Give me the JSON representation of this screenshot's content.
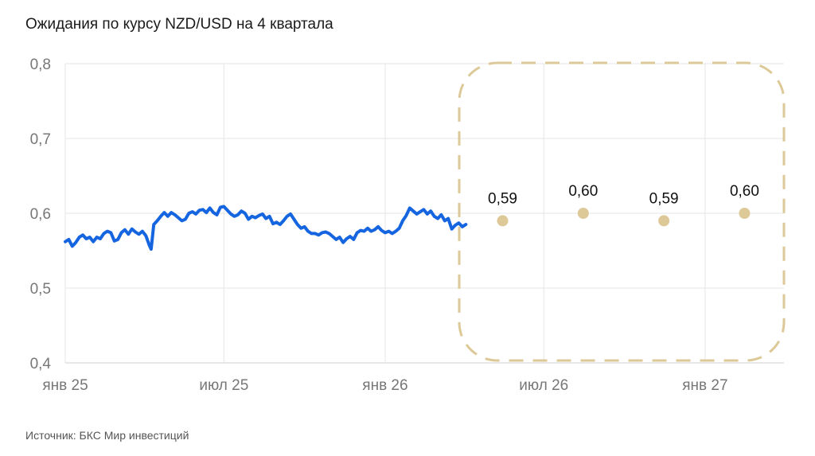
{
  "chart_data": {
    "type": "line",
    "title": "Ожидания по курсу NZD/USD на 4 квартала",
    "source": "Источник: БКС Мир инвестиций",
    "x_ticks": [
      "янв 25",
      "июл 25",
      "янв 26",
      "июл 26",
      "янв 27"
    ],
    "y_ticks": [
      "0,4",
      "0,5",
      "0,6",
      "0,7",
      "0,8"
    ],
    "ylim": [
      0.4,
      0.8
    ],
    "xlim": [
      "2025-01-01",
      "2027-04-01"
    ],
    "grid": true,
    "series": [
      {
        "kind": "line",
        "color": "#1565e0",
        "points": [
          [
            "2025-01-01",
            0.562
          ],
          [
            "2025-01-05",
            0.565
          ],
          [
            "2025-01-09",
            0.556
          ],
          [
            "2025-01-13",
            0.561
          ],
          [
            "2025-01-17",
            0.568
          ],
          [
            "2025-01-21",
            0.571
          ],
          [
            "2025-01-25",
            0.566
          ],
          [
            "2025-01-29",
            0.568
          ],
          [
            "2025-02-02",
            0.562
          ],
          [
            "2025-02-06",
            0.568
          ],
          [
            "2025-02-10",
            0.566
          ],
          [
            "2025-02-14",
            0.573
          ],
          [
            "2025-02-18",
            0.576
          ],
          [
            "2025-02-22",
            0.574
          ],
          [
            "2025-02-26",
            0.563
          ],
          [
            "2025-03-02",
            0.565
          ],
          [
            "2025-03-06",
            0.574
          ],
          [
            "2025-03-10",
            0.578
          ],
          [
            "2025-03-14",
            0.572
          ],
          [
            "2025-03-18",
            0.579
          ],
          [
            "2025-03-22",
            0.575
          ],
          [
            "2025-03-26",
            0.572
          ],
          [
            "2025-03-30",
            0.576
          ],
          [
            "2025-04-03",
            0.57
          ],
          [
            "2025-04-07",
            0.557
          ],
          [
            "2025-04-09",
            0.552
          ],
          [
            "2025-04-12",
            0.585
          ],
          [
            "2025-04-16",
            0.59
          ],
          [
            "2025-04-20",
            0.596
          ],
          [
            "2025-04-24",
            0.601
          ],
          [
            "2025-04-28",
            0.596
          ],
          [
            "2025-05-02",
            0.601
          ],
          [
            "2025-05-06",
            0.598
          ],
          [
            "2025-05-10",
            0.594
          ],
          [
            "2025-05-14",
            0.59
          ],
          [
            "2025-05-18",
            0.592
          ],
          [
            "2025-05-22",
            0.6
          ],
          [
            "2025-05-26",
            0.602
          ],
          [
            "2025-05-30",
            0.599
          ],
          [
            "2025-06-03",
            0.604
          ],
          [
            "2025-06-07",
            0.605
          ],
          [
            "2025-06-11",
            0.601
          ],
          [
            "2025-06-15",
            0.607
          ],
          [
            "2025-06-19",
            0.601
          ],
          [
            "2025-06-23",
            0.598
          ],
          [
            "2025-06-27",
            0.608
          ],
          [
            "2025-07-01",
            0.609
          ],
          [
            "2025-07-05",
            0.604
          ],
          [
            "2025-07-09",
            0.599
          ],
          [
            "2025-07-13",
            0.596
          ],
          [
            "2025-07-17",
            0.598
          ],
          [
            "2025-07-21",
            0.603
          ],
          [
            "2025-07-25",
            0.6
          ],
          [
            "2025-07-29",
            0.592
          ],
          [
            "2025-08-02",
            0.596
          ],
          [
            "2025-08-06",
            0.594
          ],
          [
            "2025-08-10",
            0.597
          ],
          [
            "2025-08-14",
            0.599
          ],
          [
            "2025-08-18",
            0.593
          ],
          [
            "2025-08-22",
            0.596
          ],
          [
            "2025-08-26",
            0.586
          ],
          [
            "2025-08-30",
            0.588
          ],
          [
            "2025-09-03",
            0.585
          ],
          [
            "2025-09-07",
            0.59
          ],
          [
            "2025-09-11",
            0.596
          ],
          [
            "2025-09-15",
            0.599
          ],
          [
            "2025-09-19",
            0.592
          ],
          [
            "2025-09-23",
            0.585
          ],
          [
            "2025-09-27",
            0.58
          ],
          [
            "2025-10-01",
            0.582
          ],
          [
            "2025-10-05",
            0.576
          ],
          [
            "2025-10-09",
            0.573
          ],
          [
            "2025-10-13",
            0.573
          ],
          [
            "2025-10-17",
            0.571
          ],
          [
            "2025-10-21",
            0.574
          ],
          [
            "2025-10-25",
            0.575
          ],
          [
            "2025-10-29",
            0.573
          ],
          [
            "2025-11-02",
            0.569
          ],
          [
            "2025-11-06",
            0.565
          ],
          [
            "2025-11-10",
            0.568
          ],
          [
            "2025-11-14",
            0.561
          ],
          [
            "2025-11-18",
            0.566
          ],
          [
            "2025-11-22",
            0.569
          ],
          [
            "2025-11-26",
            0.565
          ],
          [
            "2025-11-30",
            0.574
          ],
          [
            "2025-12-04",
            0.577
          ],
          [
            "2025-12-08",
            0.576
          ],
          [
            "2025-12-12",
            0.58
          ],
          [
            "2025-12-16",
            0.576
          ],
          [
            "2025-12-20",
            0.578
          ],
          [
            "2025-12-24",
            0.582
          ],
          [
            "2025-12-28",
            0.577
          ],
          [
            "2026-01-01",
            0.574
          ],
          [
            "2026-01-05",
            0.576
          ],
          [
            "2026-01-09",
            0.573
          ],
          [
            "2026-01-13",
            0.576
          ],
          [
            "2026-01-17",
            0.58
          ],
          [
            "2026-01-21",
            0.59
          ],
          [
            "2026-01-25",
            0.597
          ],
          [
            "2026-01-29",
            0.607
          ],
          [
            "2026-02-02",
            0.603
          ],
          [
            "2026-02-06",
            0.599
          ],
          [
            "2026-02-10",
            0.602
          ],
          [
            "2026-02-14",
            0.605
          ],
          [
            "2026-02-18",
            0.599
          ],
          [
            "2026-02-22",
            0.603
          ],
          [
            "2026-02-26",
            0.596
          ],
          [
            "2026-03-02",
            0.593
          ],
          [
            "2026-03-06",
            0.598
          ],
          [
            "2026-03-10",
            0.59
          ],
          [
            "2026-03-14",
            0.593
          ],
          [
            "2026-03-18",
            0.579
          ],
          [
            "2026-03-22",
            0.584
          ],
          [
            "2026-03-26",
            0.587
          ],
          [
            "2026-03-30",
            0.582
          ],
          [
            "2026-04-03",
            0.585
          ]
        ]
      },
      {
        "kind": "forecast",
        "color": "#ddc998",
        "points": [
          [
            "2026-05-15",
            0.59
          ],
          [
            "2026-08-15",
            0.6
          ],
          [
            "2026-11-15",
            0.59
          ],
          [
            "2027-02-15",
            0.6
          ]
        ],
        "labels": [
          "0,59",
          "0,60",
          "0,59",
          "0,60"
        ]
      }
    ],
    "annotation": {
      "type": "dashed-rounded-box",
      "color": "#ddc998"
    }
  }
}
